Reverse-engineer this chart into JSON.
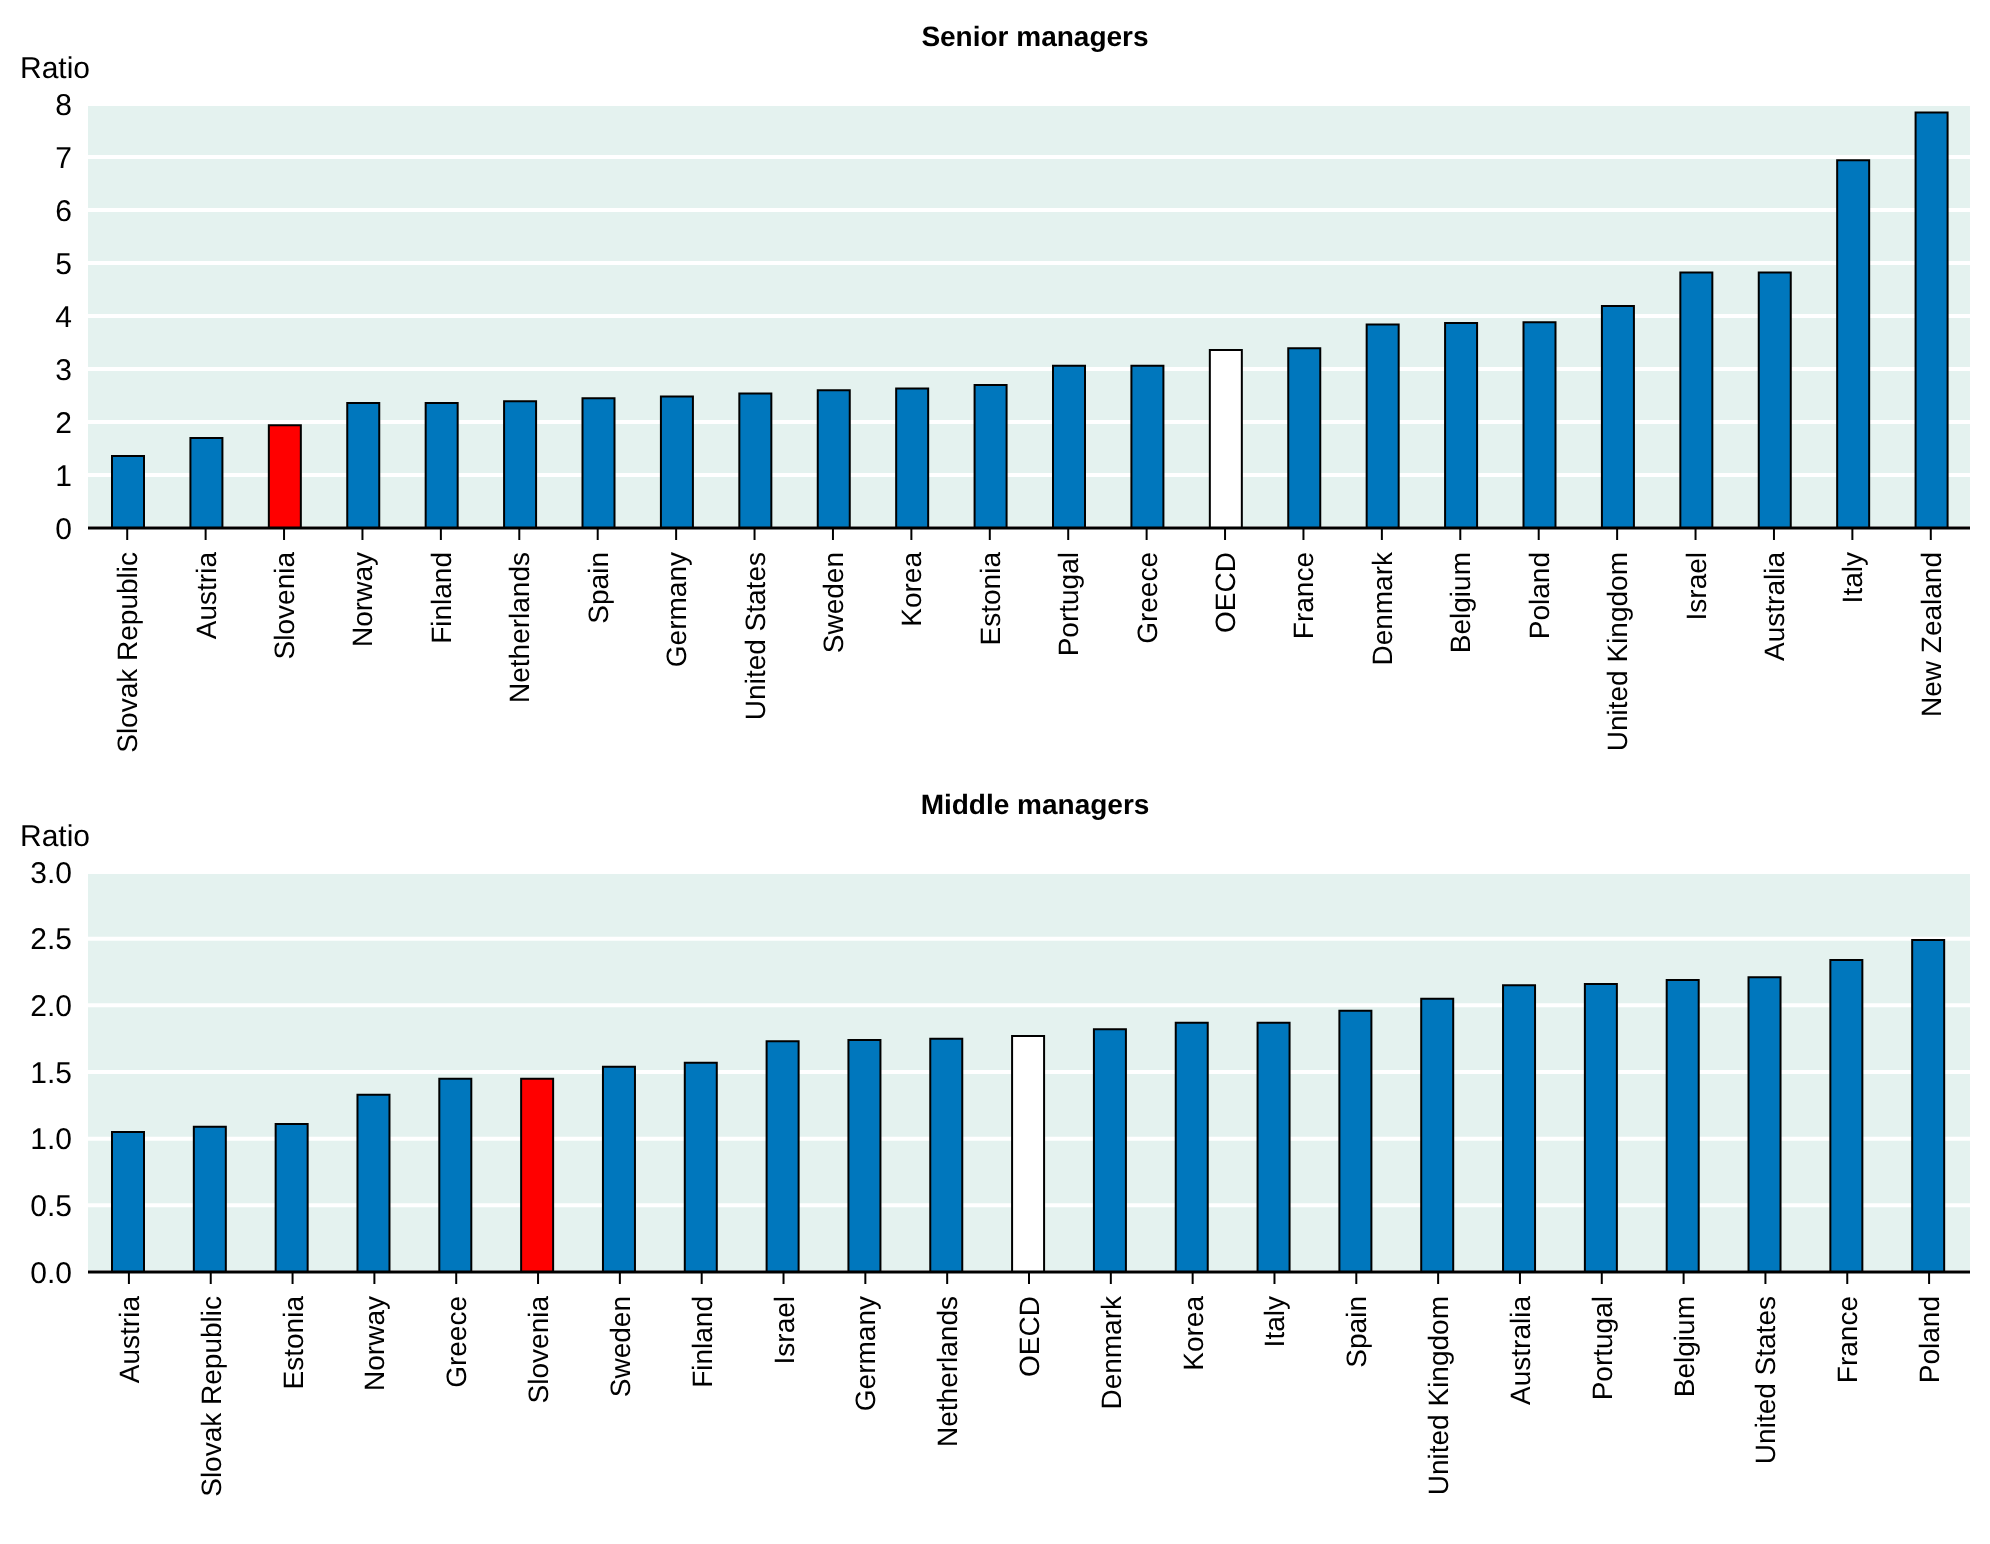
{
  "chart_data": [
    {
      "type": "bar",
      "title": "Senior managers",
      "ylabel": "Ratio",
      "categories": [
        "Slovak Republic",
        "Austria",
        "Slovenia",
        "Norway",
        "Finland",
        "Netherlands",
        "Spain",
        "Germany",
        "United States",
        "Sweden",
        "Korea",
        "Estonia",
        "Portugal",
        "Greece",
        "OECD",
        "France",
        "Denmark",
        "Belgium",
        "Poland",
        "United Kingdom",
        "Israel",
        "Australia",
        "Italy",
        "New Zealand"
      ],
      "values": [
        1.36,
        1.7,
        1.94,
        2.36,
        2.36,
        2.39,
        2.45,
        2.48,
        2.54,
        2.6,
        2.63,
        2.7,
        3.06,
        3.06,
        3.36,
        3.39,
        3.84,
        3.87,
        3.88,
        4.19,
        4.82,
        4.82,
        6.94,
        7.84
      ],
      "colors": [
        "#0077bd",
        "#0077bd",
        "#ff0000",
        "#0077bd",
        "#0077bd",
        "#0077bd",
        "#0077bd",
        "#0077bd",
        "#0077bd",
        "#0077bd",
        "#0077bd",
        "#0077bd",
        "#0077bd",
        "#0077bd",
        "#ffffff",
        "#0077bd",
        "#0077bd",
        "#0077bd",
        "#0077bd",
        "#0077bd",
        "#0077bd",
        "#0077bd",
        "#0077bd",
        "#0077bd"
      ],
      "ylim": [
        0,
        8
      ],
      "yticks": [
        0,
        1,
        2,
        3,
        4,
        5,
        6,
        7,
        8
      ],
      "grid": "y"
    },
    {
      "type": "bar",
      "title": "Middle managers",
      "ylabel": "Ratio",
      "categories": [
        "Austria",
        "Slovak Republic",
        "Estonia",
        "Norway",
        "Greece",
        "Slovenia",
        "Sweden",
        "Finland",
        "Israel",
        "Germany",
        "Netherlands",
        "OECD",
        "Denmark",
        "Korea",
        "Italy",
        "Spain",
        "United Kingdom",
        "Australia",
        "Portugal",
        "Belgium",
        "United States",
        "France",
        "Poland"
      ],
      "values": [
        1.05,
        1.09,
        1.11,
        1.33,
        1.45,
        1.45,
        1.54,
        1.57,
        1.73,
        1.74,
        1.75,
        1.77,
        1.82,
        1.87,
        1.87,
        1.96,
        2.05,
        2.15,
        2.16,
        2.19,
        2.21,
        2.34,
        2.49
      ],
      "colors": [
        "#0077bd",
        "#0077bd",
        "#0077bd",
        "#0077bd",
        "#0077bd",
        "#ff0000",
        "#0077bd",
        "#0077bd",
        "#0077bd",
        "#0077bd",
        "#0077bd",
        "#ffffff",
        "#0077bd",
        "#0077bd",
        "#0077bd",
        "#0077bd",
        "#0077bd",
        "#0077bd",
        "#0077bd",
        "#0077bd",
        "#0077bd",
        "#0077bd",
        "#0077bd"
      ],
      "ylim": [
        0,
        3
      ],
      "yticks": [
        {
          "value": 0,
          "label": "0.0"
        },
        {
          "value": 0.5,
          "label": "0.5"
        },
        {
          "value": 1,
          "label": "1.0"
        },
        {
          "value": 1.5,
          "label": "1.5"
        },
        {
          "value": 2,
          "label": "2.0"
        },
        {
          "value": 2.5,
          "label": "2.5"
        },
        {
          "value": 3,
          "label": "3.0"
        }
      ],
      "grid": "y"
    }
  ]
}
